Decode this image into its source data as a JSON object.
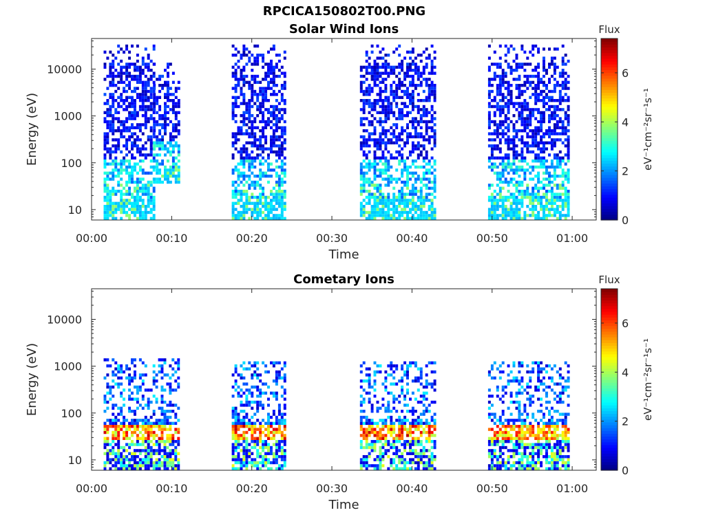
{
  "figure_title": "RPCICA150802T00.PNG",
  "chart_data": [
    {
      "type": "heatmap",
      "title": "Solar Wind Ions",
      "xlabel": "Time",
      "ylabel": "Energy (eV)",
      "yscale": "log",
      "xlim": [
        "00:00",
        "01:03"
      ],
      "ylim": [
        6,
        45000
      ],
      "xticks": [
        "00:00",
        "00:10",
        "00:20",
        "00:30",
        "00:40",
        "00:50",
        "01:00"
      ],
      "yticks": [
        "10",
        "100",
        "1000",
        "10000"
      ],
      "colorbar": {
        "label": "Flux",
        "units": "eV⁻¹cm⁻²sr⁻¹s⁻¹",
        "range": [
          0,
          7.4
        ],
        "ticks": [
          0,
          2,
          4,
          6
        ],
        "colormap": "jet"
      },
      "bursts": [
        {
          "t_start": "00:01:30",
          "t_end": "00:07:40",
          "e_min": 6,
          "e_max": 35000,
          "peak": 3.5
        },
        {
          "t_start": "00:07:40",
          "t_end": "00:11:00",
          "e_min": 35,
          "e_max": 13000,
          "peak": 3.5
        },
        {
          "t_start": "00:17:30",
          "t_end": "00:24:00",
          "e_min": 6,
          "e_max": 35000,
          "peak": 3.2
        },
        {
          "t_start": "00:33:30",
          "t_end": "00:43:00",
          "e_min": 6,
          "e_max": 35000,
          "peak": 3.2
        },
        {
          "t_start": "00:49:30",
          "t_end": "00:59:30",
          "e_min": 6,
          "e_max": 35000,
          "peak": 3.2
        }
      ]
    },
    {
      "type": "heatmap",
      "title": "Cometary Ions",
      "xlabel": "Time",
      "ylabel": "Energy (eV)",
      "yscale": "log",
      "xlim": [
        "00:00",
        "01:03"
      ],
      "ylim": [
        6,
        45000
      ],
      "xticks": [
        "00:00",
        "00:10",
        "00:20",
        "00:30",
        "00:40",
        "00:50",
        "01:00"
      ],
      "yticks": [
        "10",
        "100",
        "1000",
        "10000"
      ],
      "colorbar": {
        "label": "Flux",
        "units": "eV⁻¹cm⁻²sr⁻¹s⁻¹",
        "range": [
          0,
          7.4
        ],
        "ticks": [
          0,
          2,
          4,
          6
        ],
        "colormap": "jet"
      },
      "bursts": [
        {
          "t_start": "00:01:30",
          "t_end": "00:11:00",
          "e_min": 6,
          "e_max": 1400,
          "peak": 7.0
        },
        {
          "t_start": "00:17:30",
          "t_end": "00:24:00",
          "e_min": 6,
          "e_max": 1300,
          "peak": 7.0
        },
        {
          "t_start": "00:33:30",
          "t_end": "00:43:00",
          "e_min": 6,
          "e_max": 1300,
          "peak": 7.0
        },
        {
          "t_start": "00:49:30",
          "t_end": "00:59:30",
          "e_min": 6,
          "e_max": 1300,
          "peak": 6.5
        }
      ]
    }
  ]
}
